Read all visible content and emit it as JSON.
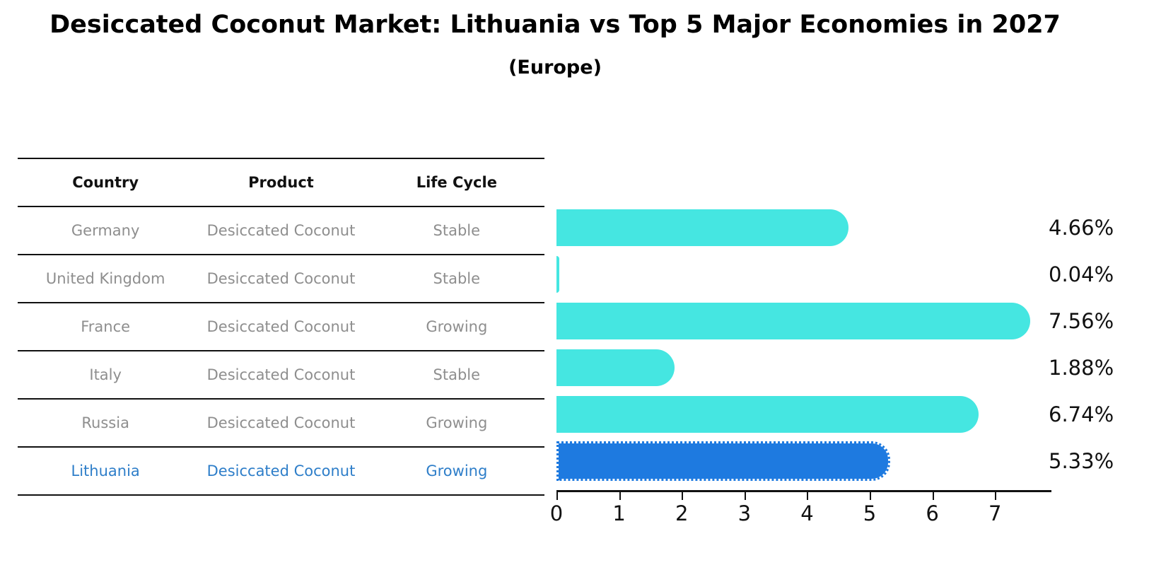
{
  "title": "Desiccated Coconut Market: Lithuania vs Top 5 Major Economies in 2027",
  "subtitle": "(Europe)",
  "table": {
    "headers": [
      "Country",
      "Product",
      "Life Cycle"
    ],
    "rows": [
      {
        "country": "Germany",
        "product": "Desiccated Coconut",
        "life_cycle": "Stable",
        "value_label": "4.66%"
      },
      {
        "country": "United Kingdom",
        "product": "Desiccated Coconut",
        "life_cycle": "Stable",
        "value_label": "0.04%"
      },
      {
        "country": "France",
        "product": "Desiccated Coconut",
        "life_cycle": "Growing",
        "value_label": "7.56%"
      },
      {
        "country": "Italy",
        "product": "Desiccated Coconut",
        "life_cycle": "Stable",
        "value_label": "1.88%"
      },
      {
        "country": "Russia",
        "product": "Desiccated Coconut",
        "life_cycle": "Growing",
        "value_label": "6.74%"
      },
      {
        "country": "Lithuania",
        "product": "Desiccated Coconut",
        "life_cycle": "Growing",
        "value_label": "5.33%"
      }
    ]
  },
  "chart_data": {
    "type": "bar",
    "orientation": "horizontal",
    "title": "Desiccated Coconut Market: Lithuania vs Top 5 Major Economies in 2027",
    "subtitle": "(Europe)",
    "categories": [
      "Germany",
      "United Kingdom",
      "France",
      "Italy",
      "Russia",
      "Lithuania"
    ],
    "values": [
      4.66,
      0.04,
      7.56,
      1.88,
      6.74,
      5.33
    ],
    "value_labels": [
      "4.66%",
      "0.04%",
      "7.56%",
      "1.88%",
      "6.74%",
      "5.33%"
    ],
    "xlabel": "",
    "ylabel": "",
    "xlim": [
      0,
      7.9
    ],
    "x_ticks": [
      0,
      1,
      2,
      3,
      4,
      5,
      6,
      7
    ],
    "grid": false,
    "legend": "none",
    "highlight_category": "Lithuania",
    "highlight_index": 5,
    "colors": {
      "bar": "#45E6E1",
      "highlight_bar": "#1E7AE0",
      "highlight_text": "#2E7EC9",
      "row_text": "#8E8E8E",
      "axis_ink": "#111111"
    }
  }
}
